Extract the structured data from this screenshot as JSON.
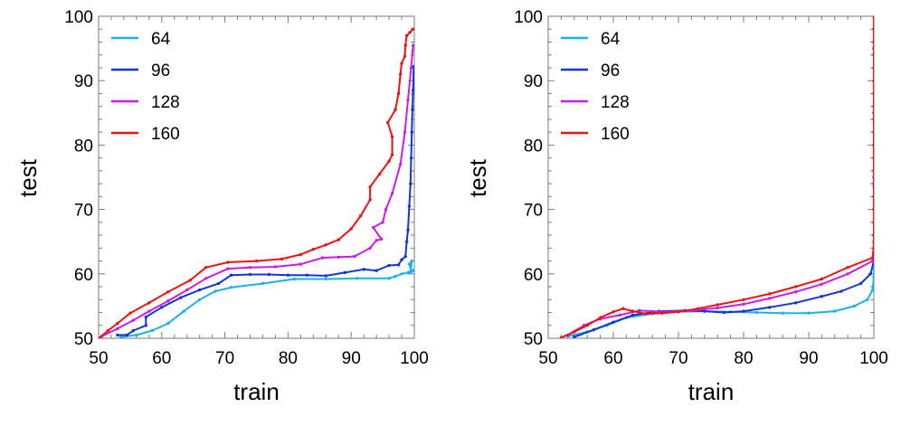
{
  "chart_data": [
    {
      "type": "line",
      "xlabel": "train",
      "ylabel": "test",
      "xlim": [
        50,
        100
      ],
      "ylim": [
        50,
        100
      ],
      "x_ticks": [
        "50",
        "60",
        "70",
        "80",
        "90",
        "100"
      ],
      "y_ticks": [
        "50",
        "60",
        "70",
        "80",
        "90",
        "100"
      ],
      "grid": false,
      "legend_placement": "top-left",
      "series": [
        {
          "name": "64",
          "color": "#1ab2ee",
          "points": [
            [
              53.5,
              50.2
            ],
            [
              56,
              50.5
            ],
            [
              58.5,
              51.2
            ],
            [
              61,
              52.3
            ],
            [
              63.5,
              54.2
            ],
            [
              66,
              56
            ],
            [
              68.5,
              57.3
            ],
            [
              71,
              57.9
            ],
            [
              76,
              58.5
            ],
            [
              81,
              59.2
            ],
            [
              86,
              59.2
            ],
            [
              91,
              59.3
            ],
            [
              96,
              59.3
            ],
            [
              97,
              59.6
            ],
            [
              98,
              60
            ],
            [
              99,
              60.2
            ],
            [
              99.5,
              60.5
            ],
            [
              99.2,
              61.5
            ],
            [
              99.6,
              62
            ],
            [
              99.4,
              60.2
            ],
            [
              99.8,
              60.5
            ]
          ]
        },
        {
          "name": "96",
          "color": "#1535d8",
          "points": [
            [
              53,
              50.5
            ],
            [
              54.5,
              50.5
            ],
            [
              55.5,
              51.2
            ],
            [
              57.5,
              52
            ],
            [
              57.5,
              53.3
            ],
            [
              60,
              54.8
            ],
            [
              63,
              56.3
            ],
            [
              66,
              57.5
            ],
            [
              69,
              58.5
            ],
            [
              71,
              59.8
            ],
            [
              74,
              59.9
            ],
            [
              77,
              59.9
            ],
            [
              80,
              59.8
            ],
            [
              83,
              59.8
            ],
            [
              86,
              59.7
            ],
            [
              89,
              60.2
            ],
            [
              92,
              60.7
            ],
            [
              94,
              60.5
            ],
            [
              96,
              61.3
            ],
            [
              97.5,
              61.4
            ],
            [
              98,
              62.2
            ],
            [
              98.6,
              62.7
            ],
            [
              98.8,
              65
            ],
            [
              99,
              66.8
            ],
            [
              99.2,
              70.5
            ],
            [
              99.4,
              74
            ],
            [
              99.5,
              78
            ],
            [
              99.6,
              82
            ],
            [
              99.7,
              85.5
            ],
            [
              99.8,
              88.5
            ],
            [
              99.9,
              92.2
            ]
          ]
        },
        {
          "name": "128",
          "color": "#c81ee8",
          "points": [
            [
              50.5,
              50.3
            ],
            [
              53,
              51.5
            ],
            [
              55.5,
              52.8
            ],
            [
              58,
              54.2
            ],
            [
              61,
              55.8
            ],
            [
              64,
              57.5
            ],
            [
              67,
              59.3
            ],
            [
              70.5,
              60.8
            ],
            [
              74,
              61
            ],
            [
              78,
              61.1
            ],
            [
              82,
              61.5
            ],
            [
              85.5,
              62.5
            ],
            [
              88,
              62.6
            ],
            [
              90.5,
              62.7
            ],
            [
              93,
              64
            ],
            [
              94,
              65.2
            ],
            [
              94.8,
              65.4
            ],
            [
              93.5,
              67.2
            ],
            [
              95,
              68
            ],
            [
              95.5,
              70
            ],
            [
              96.5,
              72.5
            ],
            [
              97.8,
              77
            ],
            [
              98.5,
              82
            ],
            [
              99,
              87
            ],
            [
              99.5,
              92
            ],
            [
              99.8,
              95.5
            ]
          ]
        },
        {
          "name": "160",
          "color": "#ee1212",
          "points": [
            [
              50,
              50
            ],
            [
              51.5,
              51.2
            ],
            [
              53,
              52.3
            ],
            [
              55,
              53.9
            ],
            [
              58,
              55.5
            ],
            [
              61,
              57.2
            ],
            [
              64.5,
              59
            ],
            [
              67,
              61
            ],
            [
              70.5,
              61.8
            ],
            [
              75,
              62
            ],
            [
              79,
              62.3
            ],
            [
              82,
              63
            ],
            [
              84,
              63.8
            ],
            [
              86,
              64.5
            ],
            [
              88,
              65.3
            ],
            [
              90,
              67
            ],
            [
              91.5,
              69
            ],
            [
              93,
              71.5
            ],
            [
              93,
              73.5
            ],
            [
              94.5,
              75.5
            ],
            [
              96,
              77.5
            ],
            [
              96.5,
              78.5
            ],
            [
              96.5,
              81.3
            ],
            [
              95.8,
              83.5
            ],
            [
              97,
              85.5
            ],
            [
              97.5,
              88
            ],
            [
              97.8,
              91
            ],
            [
              98,
              92.7
            ],
            [
              98.5,
              93.8
            ],
            [
              98.6,
              95.5
            ],
            [
              98.8,
              97
            ],
            [
              99.3,
              97.5
            ],
            [
              99.8,
              98
            ]
          ]
        }
      ]
    },
    {
      "type": "line",
      "xlabel": "train",
      "ylabel": "test",
      "xlim": [
        50,
        100
      ],
      "ylim": [
        50,
        100
      ],
      "x_ticks": [
        "50",
        "60",
        "70",
        "80",
        "90",
        "100"
      ],
      "y_ticks": [
        "50",
        "60",
        "70",
        "80",
        "90",
        "100"
      ],
      "grid": false,
      "legend_placement": "top-left",
      "series": [
        {
          "name": "64",
          "color": "#1ab2ee",
          "points": [
            [
              53,
              50.3
            ],
            [
              56,
              51
            ],
            [
              59,
              52
            ],
            [
              62,
              53.2
            ],
            [
              66,
              53.8
            ],
            [
              70,
              54.1
            ],
            [
              74,
              54.2
            ],
            [
              78,
              54.1
            ],
            [
              82,
              54
            ],
            [
              86,
              53.9
            ],
            [
              90,
              53.9
            ],
            [
              94,
              54.2
            ],
            [
              97,
              55
            ],
            [
              99,
              56
            ],
            [
              99.8,
              57.5
            ],
            [
              100,
              59.5
            ],
            [
              100,
              62
            ],
            [
              100,
              66
            ],
            [
              100,
              70
            ],
            [
              100,
              73.5
            ]
          ]
        },
        {
          "name": "96",
          "color": "#1535d8",
          "points": [
            [
              54,
              50.2
            ],
            [
              57,
              51.3
            ],
            [
              60,
              52.5
            ],
            [
              63,
              53.6
            ],
            [
              67,
              54.2
            ],
            [
              71,
              54.3
            ],
            [
              74,
              54.2
            ],
            [
              77,
              54
            ],
            [
              80,
              54.2
            ],
            [
              84,
              54.8
            ],
            [
              88,
              55.5
            ],
            [
              92,
              56.5
            ],
            [
              95,
              57.3
            ],
            [
              98,
              58.5
            ],
            [
              99.5,
              60
            ],
            [
              100,
              62
            ],
            [
              100,
              66
            ],
            [
              100,
              70
            ],
            [
              100,
              75
            ],
            [
              100,
              80
            ],
            [
              100,
              85
            ],
            [
              100,
              90
            ],
            [
              100,
              95
            ],
            [
              100,
              98
            ]
          ]
        },
        {
          "name": "128",
          "color": "#c81ee8",
          "points": [
            [
              53,
              50.5
            ],
            [
              55.5,
              52
            ],
            [
              58,
              53
            ],
            [
              61,
              53.6
            ],
            [
              64,
              54.3
            ],
            [
              68,
              54.1
            ],
            [
              72,
              54.3
            ],
            [
              76,
              54.7
            ],
            [
              80,
              55.3
            ],
            [
              84,
              56.2
            ],
            [
              88,
              57.2
            ],
            [
              92,
              58.4
            ],
            [
              96,
              60
            ],
            [
              99.8,
              62
            ],
            [
              100,
              65
            ],
            [
              100,
              70
            ],
            [
              100,
              75
            ],
            [
              100,
              80
            ],
            [
              100,
              85
            ],
            [
              100,
              90
            ],
            [
              100,
              95
            ]
          ]
        },
        {
          "name": "160",
          "color": "#ee1212",
          "points": [
            [
              52,
              50.1
            ],
            [
              54,
              51
            ],
            [
              56,
              52
            ],
            [
              58,
              53.2
            ],
            [
              60,
              54.1
            ],
            [
              61.5,
              54.6
            ],
            [
              63,
              54.2
            ],
            [
              65,
              53.8
            ],
            [
              67.5,
              53.9
            ],
            [
              70,
              54.1
            ],
            [
              73,
              54.6
            ],
            [
              76,
              55.2
            ],
            [
              80,
              56
            ],
            [
              84,
              56.9
            ],
            [
              88,
              58
            ],
            [
              92,
              59.2
            ],
            [
              96,
              61
            ],
            [
              99.8,
              62.5
            ],
            [
              100,
              64
            ],
            [
              100,
              66
            ],
            [
              100,
              68
            ],
            [
              100,
              70
            ],
            [
              100,
              72
            ],
            [
              100,
              74
            ],
            [
              100,
              76
            ],
            [
              100,
              78
            ],
            [
              100,
              80
            ],
            [
              100,
              82
            ],
            [
              100,
              84
            ],
            [
              100,
              86
            ],
            [
              100,
              88
            ],
            [
              100,
              90
            ],
            [
              100,
              92
            ],
            [
              100,
              94
            ],
            [
              100,
              96
            ],
            [
              100,
              98
            ],
            [
              100,
              100
            ]
          ]
        }
      ]
    }
  ]
}
